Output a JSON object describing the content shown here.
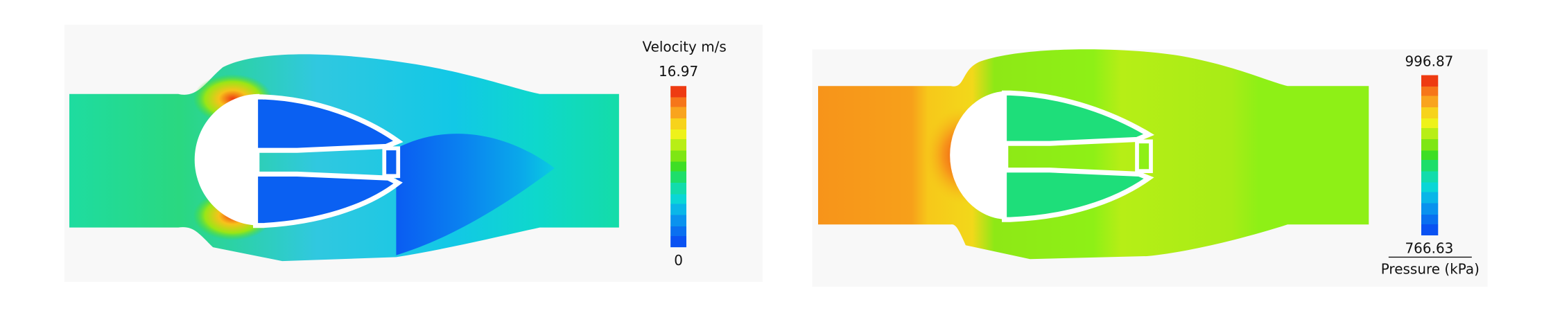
{
  "panels": [
    {
      "legend": {
        "title": "Velocity m/s",
        "max": "16.97",
        "min": "0"
      }
    },
    {
      "legend": {
        "max": "996.87",
        "min": "766.63",
        "title": "Pressure (kPa)"
      }
    }
  ]
}
